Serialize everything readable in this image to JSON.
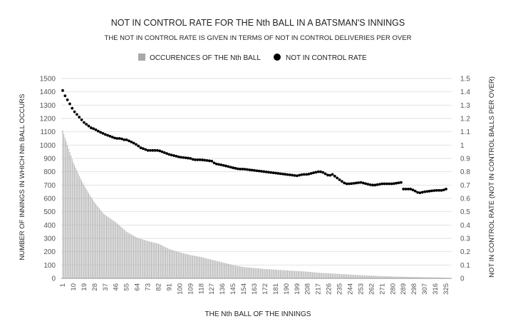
{
  "chart_data": {
    "type": "bar",
    "title": "NOT IN CONTROL RATE FOR THE Nth BALL IN A BATSMAN'S INNINGS",
    "subtitle": "THE NOT IN CONTROL RATE IS GIVEN IN TERMS OF NOT IN CONTROL DELIVERIES PER OVER",
    "xlabel": "THE Nth BALL OF THE INNINGS",
    "ylabel": "NUMBER OF INNINGS IN WHICH Nth BALL OCCURS",
    "y2label": "NOT IN CONTROL RATE (NOT IN CONTROL BALLS PER OVER)",
    "xlim": [
      1,
      325
    ],
    "ylim": [
      0,
      1500
    ],
    "y2lim": [
      0,
      1.5
    ],
    "y_ticks": [
      0,
      100,
      200,
      300,
      400,
      500,
      600,
      700,
      800,
      900,
      1000,
      1100,
      1200,
      1300,
      1400,
      1500
    ],
    "y2_ticks": [
      "0",
      "0.1",
      "0.2",
      "0.3",
      "0.4",
      "0.5",
      "0.6",
      "0.7",
      "0.8",
      "0.9",
      "1",
      "1.1",
      "1.2",
      "1.3",
      "1.4",
      "1.5"
    ],
    "x_ticks": [
      1,
      10,
      19,
      28,
      37,
      46,
      55,
      64,
      73,
      82,
      91,
      100,
      109,
      118,
      127,
      136,
      145,
      154,
      163,
      172,
      181,
      190,
      199,
      208,
      217,
      226,
      235,
      244,
      253,
      262,
      271,
      280,
      289,
      298,
      307,
      316,
      325
    ],
    "grid": true,
    "legend_position": "top",
    "series": [
      {
        "name": "OCCURENCES OF THE Nth BALL",
        "type": "bar",
        "axis": "left",
        "color": "#a9a9a9",
        "x": [
          1,
          5,
          10,
          15,
          19,
          25,
          28,
          35,
          37,
          46,
          55,
          64,
          73,
          82,
          91,
          100,
          109,
          118,
          127,
          136,
          145,
          154,
          163,
          172,
          181,
          190,
          199,
          208,
          217,
          226,
          235,
          244,
          253,
          262,
          271,
          280,
          289,
          298,
          307,
          316,
          325
        ],
        "values": [
          1110,
          1000,
          870,
          770,
          700,
          610,
          570,
          490,
          475,
          420,
          350,
          305,
          280,
          260,
          220,
          195,
          175,
          160,
          140,
          120,
          100,
          85,
          77,
          70,
          65,
          60,
          55,
          50,
          42,
          38,
          33,
          28,
          24,
          20,
          17,
          14,
          12,
          10,
          8,
          6,
          5
        ]
      },
      {
        "name": "NOT IN CONTROL RATE",
        "type": "scatter",
        "axis": "right",
        "color": "#000000",
        "x": [
          1,
          3,
          5,
          7,
          10,
          15,
          19,
          25,
          28,
          32,
          37,
          43,
          46,
          50,
          53,
          55,
          60,
          64,
          67,
          73,
          82,
          85,
          91,
          100,
          109,
          112,
          118,
          127,
          130,
          136,
          145,
          150,
          154,
          163,
          172,
          181,
          190,
          199,
          204,
          208,
          212,
          217,
          220,
          226,
          229,
          232,
          235,
          240,
          244,
          253,
          262,
          265,
          271,
          280,
          287,
          289,
          295,
          298,
          302,
          307,
          316,
          322,
          325
        ],
        "values": [
          1.41,
          1.37,
          1.34,
          1.31,
          1.26,
          1.21,
          1.17,
          1.13,
          1.12,
          1.1,
          1.08,
          1.06,
          1.05,
          1.05,
          1.04,
          1.04,
          1.02,
          1.0,
          0.98,
          0.96,
          0.96,
          0.95,
          0.93,
          0.91,
          0.9,
          0.89,
          0.89,
          0.88,
          0.86,
          0.85,
          0.83,
          0.82,
          0.82,
          0.81,
          0.8,
          0.79,
          0.78,
          0.77,
          0.78,
          0.78,
          0.79,
          0.8,
          0.8,
          0.77,
          0.78,
          0.76,
          0.74,
          0.71,
          0.71,
          0.72,
          0.7,
          0.7,
          0.71,
          0.71,
          0.72,
          0.67,
          0.67,
          0.66,
          0.64,
          0.65,
          0.66,
          0.66,
          0.67
        ]
      }
    ]
  }
}
